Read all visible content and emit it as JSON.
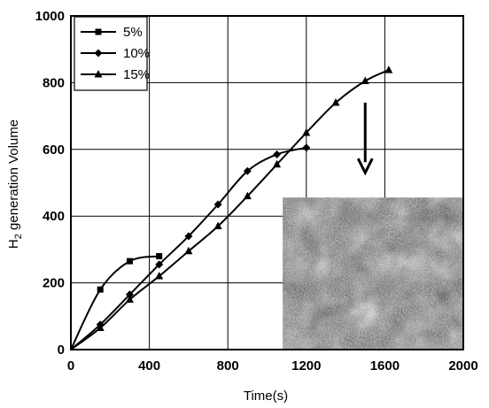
{
  "chart_data": {
    "type": "line",
    "xlabel": "Time(s)",
    "ylabel_main": "H",
    "ylabel_sub": "2",
    "ylabel_rest": " generation Volume",
    "xlim": [
      0,
      2000
    ],
    "ylim": [
      0,
      1000
    ],
    "x_ticks": [
      0,
      400,
      800,
      1200,
      1600,
      2000
    ],
    "y_ticks": [
      0,
      200,
      400,
      600,
      800,
      1000
    ],
    "x_tick_labels": [
      "0",
      "400",
      "800",
      "1200",
      "1600",
      "2000"
    ],
    "y_tick_labels": [
      "0",
      "200",
      "400",
      "600",
      "800",
      "1000"
    ],
    "grid": true,
    "legend_position": "top-left",
    "series": [
      {
        "name": "5%",
        "marker": "square",
        "x": [
          0,
          150,
          300,
          450
        ],
        "y": [
          0,
          180,
          265,
          280
        ]
      },
      {
        "name": "10%",
        "marker": "diamond",
        "x": [
          0,
          150,
          300,
          450,
          600,
          750,
          900,
          1050,
          1200
        ],
        "y": [
          0,
          75,
          165,
          255,
          340,
          435,
          535,
          585,
          605
        ]
      },
      {
        "name": "15%",
        "marker": "triangle",
        "x": [
          0,
          150,
          300,
          450,
          600,
          750,
          900,
          1050,
          1200,
          1350,
          1500,
          1620
        ],
        "y": [
          0,
          65,
          150,
          220,
          295,
          370,
          460,
          555,
          650,
          740,
          805,
          838
        ]
      }
    ],
    "annotations": {
      "arrow": {
        "x": 1500,
        "y_from": 740,
        "y_to": 530
      },
      "inset_image": {
        "x_from": 1080,
        "x_to": 2000,
        "y_from": 0,
        "y_to": 455
      }
    }
  }
}
